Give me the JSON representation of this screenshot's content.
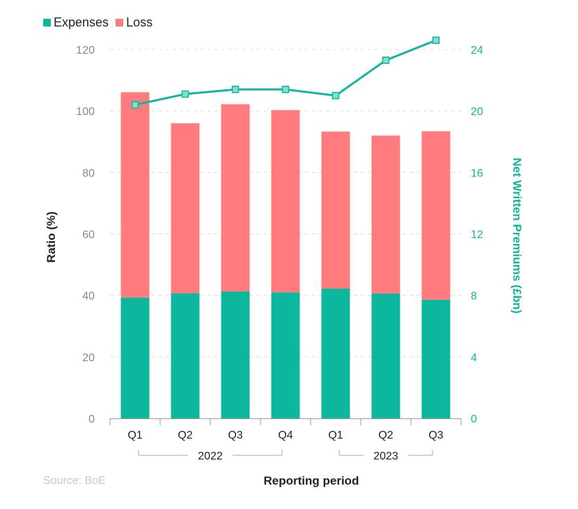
{
  "legend": [
    {
      "label": "Expenses",
      "color": "#0db79d"
    },
    {
      "label": "Loss",
      "color": "#ff7b7d"
    }
  ],
  "source": "Source: BoE",
  "chart_data": {
    "type": "bar",
    "stacked": true,
    "categories": [
      "Q1",
      "Q2",
      "Q3",
      "Q4",
      "Q1",
      "Q2",
      "Q3"
    ],
    "groups": [
      {
        "label": "2022",
        "categories": [
          "Q1",
          "Q2",
          "Q3",
          "Q4"
        ]
      },
      {
        "label": "2023",
        "categories": [
          "Q1",
          "Q2",
          "Q3"
        ]
      }
    ],
    "series": [
      {
        "name": "Expenses",
        "axis": "left",
        "color": "#0db79d",
        "values": [
          39.3,
          40.7,
          41.3,
          41.0,
          42.2,
          40.6,
          38.6
        ]
      },
      {
        "name": "Loss",
        "axis": "left",
        "color": "#ff7b7d",
        "values": [
          66.8,
          55.3,
          60.9,
          59.3,
          51.1,
          51.4,
          54.8
        ]
      },
      {
        "name": "Net Written Premiums",
        "type": "line",
        "axis": "right",
        "color": "#11b59e",
        "values": [
          20.4,
          21.1,
          21.4,
          21.4,
          21.0,
          23.3,
          24.6
        ]
      }
    ],
    "ylabel": "Ratio (%)",
    "ylim": [
      0,
      120
    ],
    "yticks": [
      0,
      20,
      40,
      60,
      80,
      100,
      120
    ],
    "y2label": "Net Written Premiums (£bn)",
    "y2lim": [
      0,
      24
    ],
    "y2ticks": [
      0,
      4,
      8,
      12,
      16,
      20,
      24
    ],
    "xlabel": "Reporting period",
    "grid": true
  }
}
